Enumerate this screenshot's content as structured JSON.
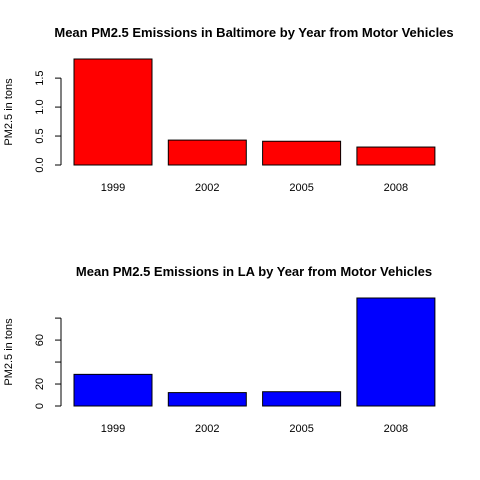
{
  "chart_data": [
    {
      "type": "bar",
      "title": "Mean PM2.5 Emissions in Baltimore by Year from Motor Vehicles",
      "xlabel": "",
      "ylabel": "PM2.5 in tons",
      "categories": [
        "1999",
        "2002",
        "2005",
        "2008"
      ],
      "values": [
        1.83,
        0.43,
        0.41,
        0.31
      ],
      "ylim": [
        0,
        1.9
      ],
      "yticks": [
        0.0,
        0.5,
        1.0,
        1.5
      ],
      "ytick_labels": [
        "0.0",
        "0.5",
        "1.0",
        "1.5"
      ],
      "bar_color": "#ff0000",
      "grid": false
    },
    {
      "type": "bar",
      "title": "Mean PM2.5 Emissions in LA by Year from Motor Vehicles",
      "xlabel": "",
      "ylabel": "PM2.5 in tons",
      "categories": [
        "1999",
        "2002",
        "2005",
        "2008"
      ],
      "values": [
        28.8,
        12.2,
        13.0,
        98.3
      ],
      "ylim": [
        0,
        100
      ],
      "yticks": [
        0,
        20,
        40,
        60,
        80
      ],
      "ytick_labels": [
        "0",
        "20",
        "",
        "60",
        ""
      ],
      "bar_color": "#0000ff",
      "grid": false
    }
  ]
}
